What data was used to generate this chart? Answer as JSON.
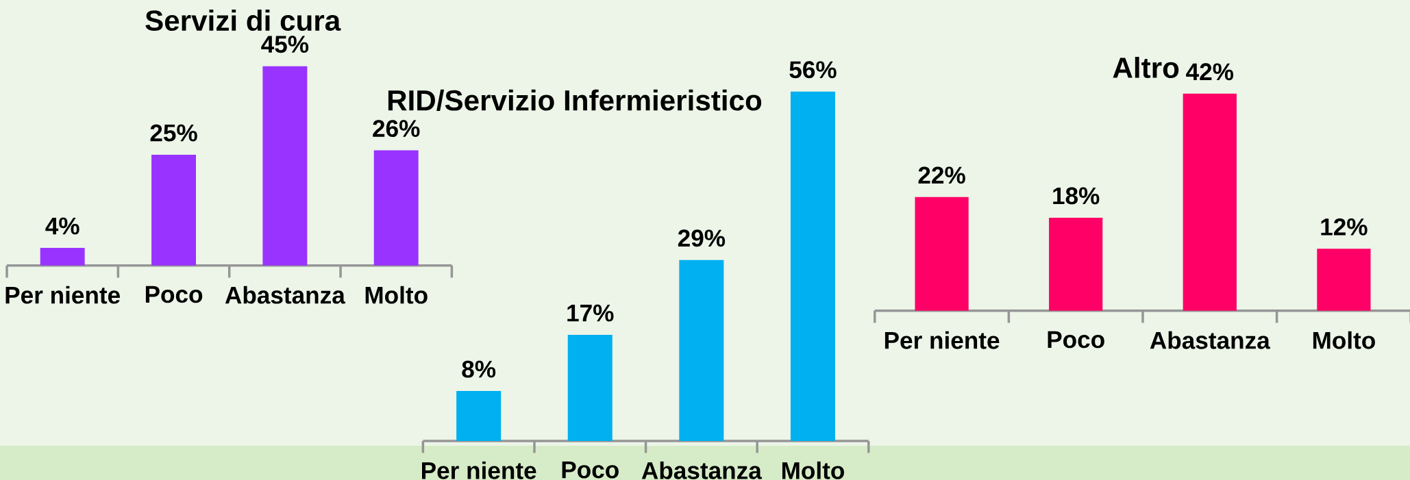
{
  "chart_data": [
    {
      "type": "bar",
      "title": "Servizi di cura",
      "categories": [
        "Per niente",
        "Poco",
        "Abastanza",
        "Molto"
      ],
      "values": [
        4,
        25,
        45,
        26
      ],
      "value_labels": [
        "4%",
        "25%",
        "45%",
        "26%"
      ],
      "color": "#9933ff"
    },
    {
      "type": "bar",
      "title": "RID/Servizio Infermieristico",
      "categories": [
        "Per niente",
        "Poco",
        "Abastanza",
        "Molto"
      ],
      "values": [
        8,
        17,
        29,
        56
      ],
      "value_labels": [
        "8%",
        "17%",
        "29%",
        "56%"
      ],
      "color": "#00b0f0"
    },
    {
      "type": "bar",
      "title": "Altro",
      "categories": [
        "Per niente",
        "Poco",
        "Abastanza",
        "Molto"
      ],
      "values": [
        22,
        18,
        42,
        12
      ],
      "value_labels": [
        "22%",
        "18%",
        "42%",
        "12%"
      ],
      "color": "#ff0066"
    }
  ]
}
